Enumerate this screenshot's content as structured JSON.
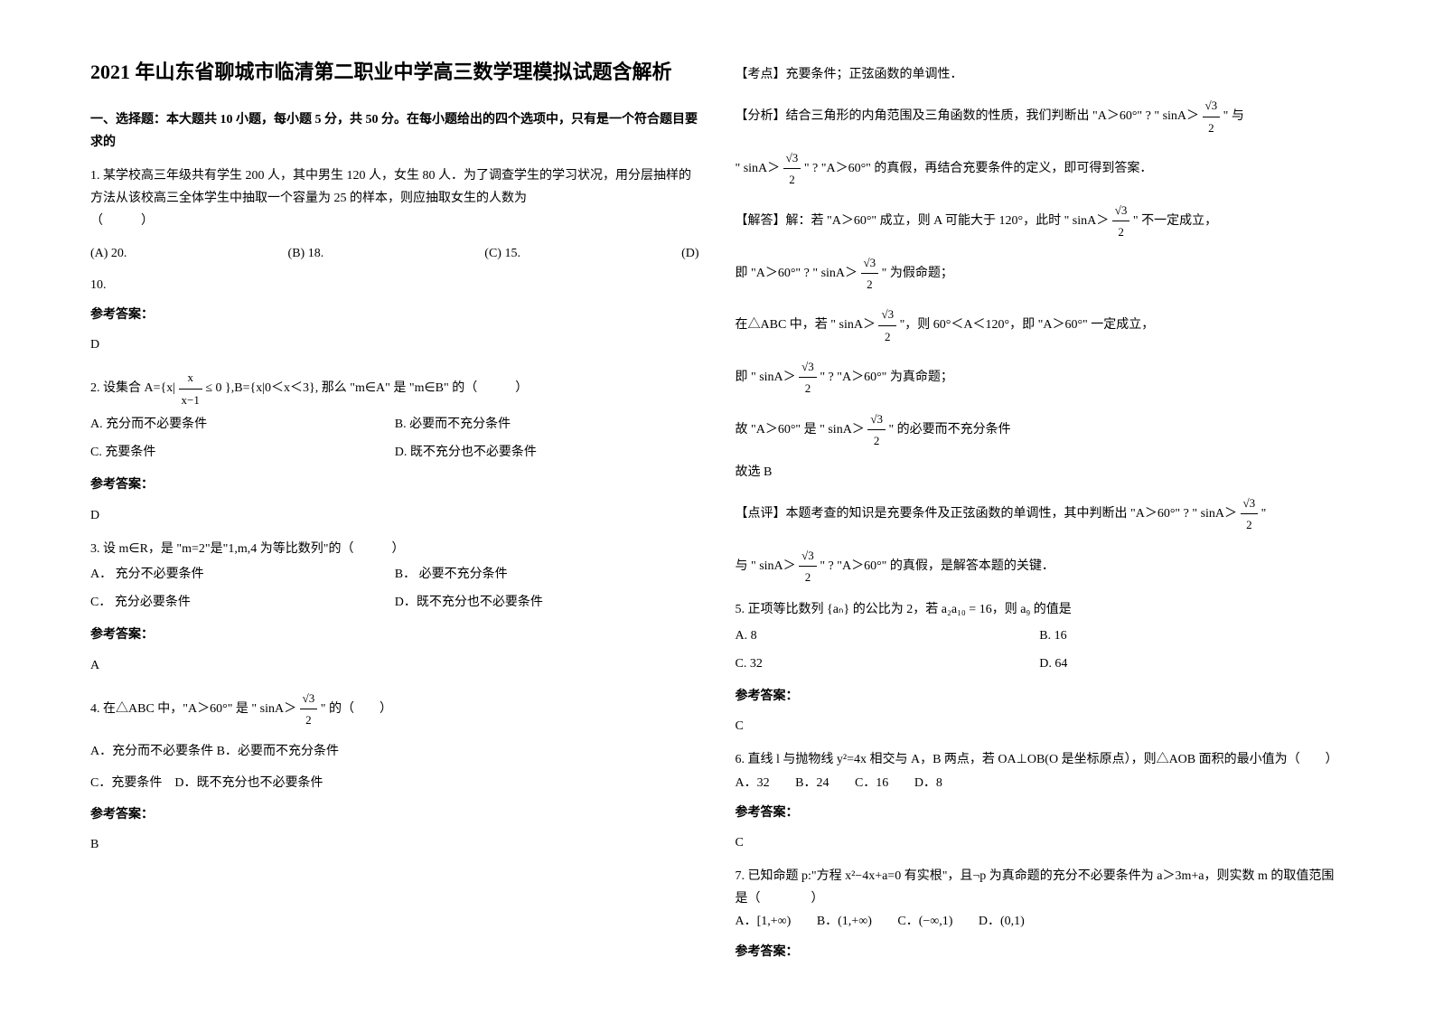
{
  "left": {
    "title": "2021 年山东省聊城市临清第二职业中学高三数学理模拟试题含解析",
    "section1": "一、选择题：本大题共 10 小题，每小题 5 分，共 50 分。在每小题给出的四个选项中，只有是一个符合题目要求的",
    "q1": {
      "text": "1. 某学校高三年级共有学生 200 人，其中男生 120 人，女生 80 人．为了调查学生的学习状况，用分层抽样的方法从该校高三全体学生中抽取一个容量为 25 的样本，则应抽取女生的人数为",
      "paren": "（　　　）",
      "optA": "(A)  20.",
      "optB": "(B)  18.",
      "optC": "(C)  15.",
      "optD": "(D)",
      "optD2": "10.",
      "ansLabel": "参考答案：",
      "ans": "D"
    },
    "q2": {
      "text_pre": "2. 设集合 A={x| ",
      "frac_num": "x",
      "frac_den": "x−1",
      "text_mid": " ≤ 0 },B={x|0＜x＜3}, 那么 \"m∈A\" 是 \"m∈B\" 的（　　　）",
      "optA": "A.  充分而不必要条件",
      "optB": "B.  必要而不充分条件",
      "optC": "C.  充要条件",
      "optD": "D.  既不充分也不必要条件",
      "ansLabel": "参考答案：",
      "ans": "D"
    },
    "q3": {
      "text": "3. 设 m∈R，是 \"m=2\"是\"1,m,4 为等比数列\"的（　　　）",
      "optA": "A．  充分不必要条件",
      "optB": "B．  必要不充分条件",
      "optC": "C．  充分必要条件",
      "optD": "D．既不充分也不必要条件",
      "ansLabel": "参考答案：",
      "ans": "A"
    },
    "q4": {
      "text_pre": "4. 在△ABC 中，\"A＞60°\" 是 \" sinA＞",
      "frac_num": "√3",
      "frac_den": "2",
      "text_post": " \" 的（　　）",
      "optA": "A．充分而不必要条件 B．必要而不充分条件",
      "optC": "C．充要条件　D．既不充分也不必要条件",
      "ansLabel": "参考答案：",
      "ans": "B"
    }
  },
  "right": {
    "kd": "【考点】充要条件；正弦函数的单调性．",
    "fx_pre": "【分析】结合三角形的内角范围及三角函数的性质，我们判断出 \"A＞60°\" ? \" sinA＞",
    "frac_num": "√3",
    "frac_den": "2",
    "fx_post": " \" 与",
    "fx2_pre": "\" sinA＞",
    "fx2_post": " \" ? \"A＞60°\" 的真假，再结合充要条件的定义，即可得到答案．",
    "jd_pre": "【解答】解：若 \"A＞60°\" 成立，则 A 可能大于 120°，此时 \" sinA＞",
    "jd_post": " \" 不一定成立，",
    "line1_pre": "即 \"A＞60°\" ? \" sinA＞",
    "line1_post": " \" 为假命题；",
    "line2_pre": "在△ABC 中，若 \" sinA＞",
    "line2_post": " \"，则 60°＜A＜120°，即 \"A＞60°\" 一定成立，",
    "line3_pre": "即 \" sinA＞",
    "line3_post": " \" ? \"A＞60°\" 为真命题；",
    "line4_pre": "故 \"A＞60°\" 是 \" sinA＞",
    "line4_post": " \" 的必要而不充分条件",
    "line5": "故选 B",
    "dp_pre": "【点评】本题考查的知识是充要条件及正弦函数的单调性，其中判断出 \"A＞60°\" ? \" sinA＞",
    "dp_post": " \"",
    "dp2_pre": "与 \" sinA＞",
    "dp2_post": " \" ? \"A＞60°\" 的真假，是解答本题的关键．",
    "q5": {
      "text": "5. 正项等比数列 {aₙ} 的公比为 2，若 a₂a₁₀ = 16，则 a₉ 的值是",
      "optA": "A. 8",
      "optB": "B. 16",
      "optC": "C. 32",
      "optD": "D. 64",
      "ansLabel": "参考答案：",
      "ans": "C"
    },
    "q6": {
      "text": "6. 直线 l 与抛物线 y²=4x 相交与 A，B 两点，若 OA⊥OB(O 是坐标原点），则△AOB 面积的最小值为（　　）",
      "optA": "A．32",
      "optB": "B．24",
      "optC": "C．16",
      "optD": "D．8",
      "ansLabel": "参考答案：",
      "ans": "C"
    },
    "q7": {
      "text": "7. 已知命题 p:\"方程 x²−4x+a=0 有实根\"，且¬p 为真命题的充分不必要条件为 a＞3m+a，则实数 m 的取值范围是（　　　　）",
      "optA": "A．[1,+∞)",
      "optB": "B．(1,+∞)",
      "optC": "C．(−∞,1)",
      "optD": "D．(0,1)",
      "ansLabel": "参考答案："
    }
  }
}
